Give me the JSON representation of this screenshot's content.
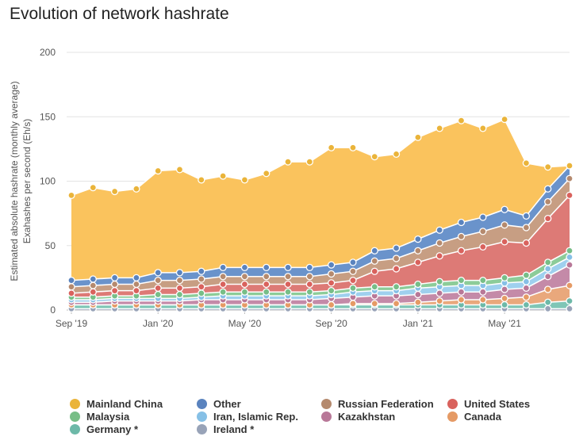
{
  "chart_data": {
    "type": "area",
    "stacked": true,
    "title": "Evolution of network hashrate",
    "ylabel": [
      "Estimated absolute hashrate (monthly average)",
      "Exahashes per second (Eh/s)"
    ],
    "xlabel": "",
    "ylim": [
      0,
      200
    ],
    "yticks": [
      0,
      50,
      100,
      150,
      200
    ],
    "grid": true,
    "legend_position": "bottom",
    "x": [
      "2019-09",
      "2019-10",
      "2019-11",
      "2019-12",
      "2020-01",
      "2020-02",
      "2020-03",
      "2020-04",
      "2020-05",
      "2020-06",
      "2020-07",
      "2020-08",
      "2020-09",
      "2020-10",
      "2020-11",
      "2020-12",
      "2021-01",
      "2021-02",
      "2021-03",
      "2021-04",
      "2021-05",
      "2021-06",
      "2021-07",
      "2021-08"
    ],
    "xticks": [
      {
        "x": "2019-09",
        "label": "Sep '19"
      },
      {
        "x": "2020-01",
        "label": "Jan '20"
      },
      {
        "x": "2020-05",
        "label": "May '20"
      },
      {
        "x": "2020-09",
        "label": "Sep '20"
      },
      {
        "x": "2021-01",
        "label": "Jan '21"
      },
      {
        "x": "2021-05",
        "label": "May '21"
      }
    ],
    "series": [
      {
        "name": "Ireland *",
        "color": "#a9b3c6",
        "values": [
          1,
          1,
          1,
          1,
          1,
          1,
          1,
          1,
          1,
          1,
          1,
          1,
          1,
          1,
          1,
          1,
          1,
          1,
          1,
          1,
          1,
          1,
          1,
          1
        ]
      },
      {
        "name": "Germany *",
        "color": "#7fc6b6",
        "values": [
          3,
          3,
          3,
          3,
          3,
          3,
          3,
          3,
          3,
          3,
          3,
          3,
          3,
          3,
          3,
          3,
          3,
          3,
          3,
          3,
          3,
          3,
          5,
          6
        ]
      },
      {
        "name": "Canada",
        "color": "#e9a87c",
        "values": [
          0,
          0,
          0,
          0,
          0,
          0,
          0,
          0,
          0,
          0,
          0,
          0,
          0,
          1,
          1,
          1,
          2,
          3,
          4,
          4,
          5,
          6,
          10,
          12
        ]
      },
      {
        "name": "Kazakhstan",
        "color": "#c48aa8",
        "values": [
          2,
          2,
          3,
          3,
          3,
          3,
          4,
          4,
          4,
          4,
          4,
          4,
          5,
          5,
          6,
          6,
          6,
          6,
          6,
          6,
          7,
          7,
          10,
          16
        ]
      },
      {
        "name": "Iran, Islamic Rep.",
        "color": "#9fd0ee",
        "values": [
          2,
          2,
          2,
          2,
          2,
          2,
          2,
          3,
          3,
          3,
          3,
          3,
          3,
          4,
          4,
          4,
          5,
          5,
          5,
          5,
          5,
          5,
          6,
          6
        ]
      },
      {
        "name": "Malaysia",
        "color": "#8ccc99",
        "values": [
          2,
          2,
          2,
          2,
          3,
          3,
          3,
          3,
          3,
          3,
          3,
          3,
          3,
          3,
          3,
          3,
          3,
          4,
          4,
          4,
          4,
          5,
          5,
          5
        ]
      },
      {
        "name": "United States",
        "color": "#dd7a76",
        "values": [
          3,
          4,
          4,
          4,
          5,
          5,
          5,
          6,
          6,
          6,
          6,
          6,
          6,
          6,
          12,
          14,
          17,
          20,
          23,
          26,
          28,
          25,
          34,
          43
        ]
      },
      {
        "name": "Russian Federation",
        "color": "#c79e83",
        "values": [
          5,
          5,
          5,
          5,
          6,
          6,
          6,
          6,
          6,
          6,
          6,
          6,
          7,
          7,
          8,
          8,
          9,
          10,
          11,
          12,
          13,
          12,
          13,
          13
        ]
      },
      {
        "name": "Other",
        "color": "#6a93cb",
        "values": [
          5,
          5,
          5,
          5,
          6,
          6,
          6,
          7,
          7,
          7,
          7,
          7,
          7,
          7,
          8,
          8,
          9,
          10,
          11,
          11,
          12,
          9,
          10,
          10
        ]
      },
      {
        "name": "Mainland China",
        "color": "#fac35d",
        "values": [
          66,
          71,
          67,
          69,
          79,
          80,
          71,
          71,
          68,
          73,
          82,
          82,
          91,
          89,
          73,
          73,
          79,
          79,
          79,
          69,
          70,
          41,
          17,
          0
        ]
      }
    ]
  },
  "legend_rows": [
    [
      "Mainland China",
      "Other",
      "Russian Federation",
      "United States"
    ],
    [
      "Malaysia",
      "Iran, Islamic Rep.",
      "Kazakhstan",
      "Canada"
    ],
    [
      "Germany *",
      "Ireland *"
    ]
  ],
  "marker_colors": {
    "Mainland China": "#eab43a",
    "Other": "#5a83be",
    "Russian Federation": "#b58a6e",
    "United States": "#d9625d",
    "Malaysia": "#77be87",
    "Iran, Islamic Rep.": "#86c0e6",
    "Kazakhstan": "#b87898",
    "Canada": "#e59a65",
    "Germany *": "#6db9a8",
    "Ireland *": "#98a3b8"
  }
}
